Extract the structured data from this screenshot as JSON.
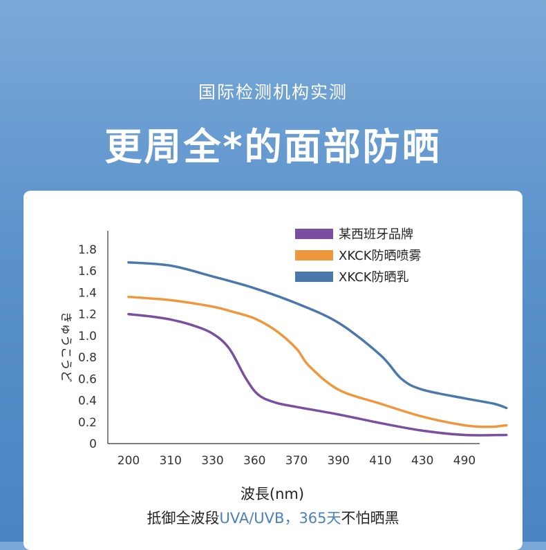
{
  "header": {
    "subtitle": "国际检测机构实测",
    "title": "更周全*的面部防晒"
  },
  "footer": {
    "part1": "抵御全波段",
    "part2": "UVA/UVB，365天",
    "part3": "不怕晒黑"
  },
  "chart_data": {
    "type": "line",
    "xlabel": "波長(nm)",
    "ylabel": "きゅうこうど",
    "categories": [
      "200",
      "310",
      "330",
      "360",
      "370",
      "390",
      "410",
      "430",
      "490"
    ],
    "ylim": [
      0,
      1.8
    ],
    "yticks": [
      "0",
      "0.2",
      "0.4",
      "0.6",
      "0.8",
      "1.0",
      "1.2",
      "1.4",
      "1.6",
      "1.8"
    ],
    "legend_position": "top-right",
    "grid": false,
    "series": [
      {
        "name": "某西班牙品牌",
        "color": "#7a4fa0",
        "points": [
          [
            0,
            1.2
          ],
          [
            0.5,
            1.18
          ],
          [
            1,
            1.15
          ],
          [
            1.5,
            1.1
          ],
          [
            2,
            1.02
          ],
          [
            2.4,
            0.88
          ],
          [
            2.8,
            0.6
          ],
          [
            3.1,
            0.45
          ],
          [
            3.5,
            0.38
          ],
          [
            4,
            0.34
          ],
          [
            5,
            0.27
          ],
          [
            6,
            0.19
          ],
          [
            7,
            0.12
          ],
          [
            8,
            0.08
          ],
          [
            9,
            0.08
          ]
        ]
      },
      {
        "name": "XKCK防晒喷雾",
        "color": "#f0963c",
        "points": [
          [
            0,
            1.36
          ],
          [
            1,
            1.33
          ],
          [
            2,
            1.27
          ],
          [
            2.5,
            1.22
          ],
          [
            3,
            1.16
          ],
          [
            3.5,
            1.05
          ],
          [
            4,
            0.88
          ],
          [
            4.3,
            0.72
          ],
          [
            5,
            0.5
          ],
          [
            6,
            0.37
          ],
          [
            7,
            0.25
          ],
          [
            8,
            0.17
          ],
          [
            8.6,
            0.155
          ],
          [
            9,
            0.17
          ]
        ]
      },
      {
        "name": "XKCK防晒乳",
        "color": "#4a78ac",
        "points": [
          [
            0,
            1.68
          ],
          [
            1,
            1.65
          ],
          [
            2,
            1.55
          ],
          [
            3,
            1.44
          ],
          [
            4,
            1.3
          ],
          [
            5,
            1.12
          ],
          [
            6,
            0.82
          ],
          [
            6.5,
            0.6
          ],
          [
            7,
            0.5
          ],
          [
            8,
            0.42
          ],
          [
            8.7,
            0.37
          ],
          [
            9,
            0.33
          ]
        ]
      }
    ]
  }
}
